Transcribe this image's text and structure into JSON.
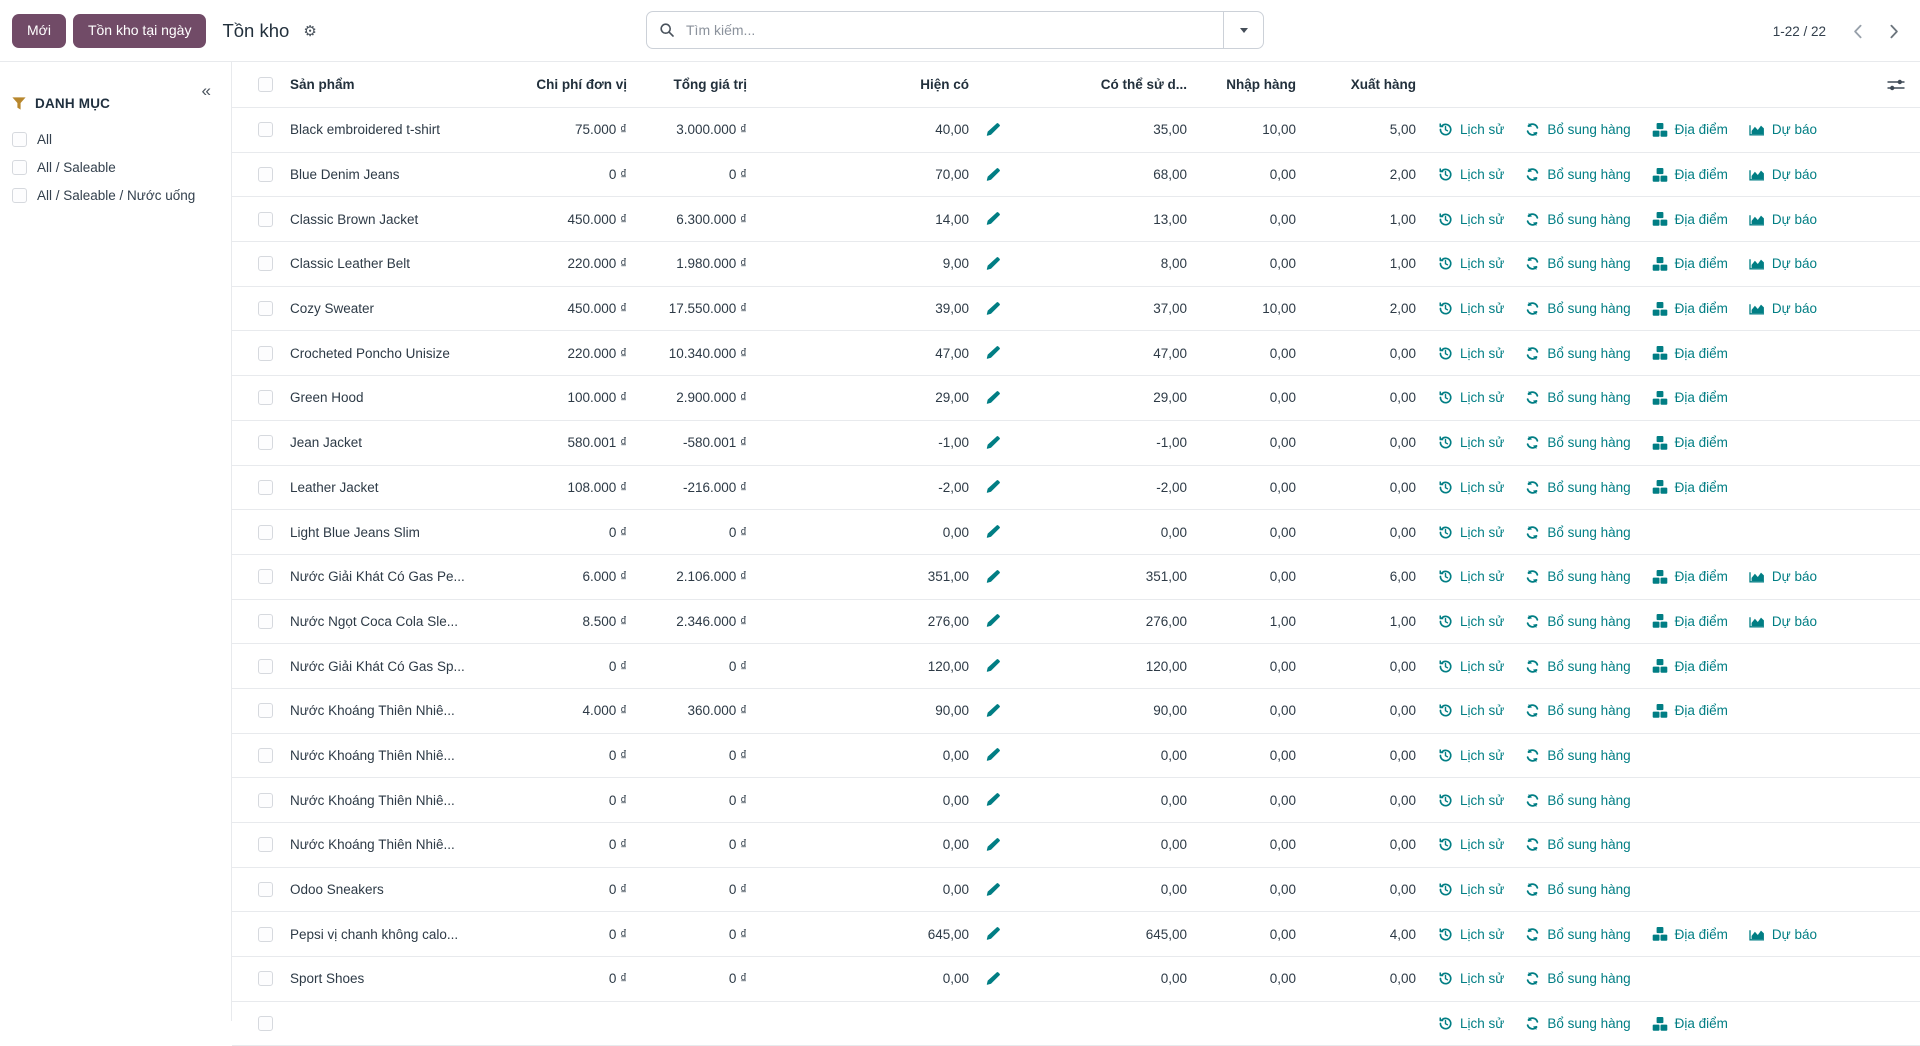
{
  "topbar": {
    "new_button": "Mới",
    "snapshot_button": "Tồn kho tại ngày",
    "title": "Tồn kho",
    "search_placeholder": "Tìm kiếm...",
    "pager_range": "1-22 / 22"
  },
  "sidebar": {
    "collapse_glyph": "«",
    "section_title": "DANH MỤC",
    "items": [
      {
        "label": "All"
      },
      {
        "label": "All / Saleable"
      },
      {
        "label": "All / Saleable / Nước uống"
      }
    ]
  },
  "table": {
    "headers": {
      "product": "Sản phẩm",
      "unit_cost": "Chi phí đơn vị",
      "total_value": "Tổng giá trị",
      "on_hand": "Hiện có",
      "available": "Có thể sử d...",
      "incoming": "Nhập hàng",
      "outgoing": "Xuất hàng"
    },
    "action_labels": {
      "history": "Lịch sử",
      "replenish": "Bổ sung hàng",
      "locations": "Địa điểm",
      "forecast": "Dự báo"
    },
    "rows": [
      {
        "name": "Black embroidered t-shirt",
        "unit_cost": "75.000 ₫",
        "total_value": "3.000.000 ₫",
        "on_hand": "40,00",
        "available": "35,00",
        "incoming": "10,00",
        "outgoing": "5,00",
        "actions": [
          "history",
          "replenish",
          "locations",
          "forecast"
        ]
      },
      {
        "name": "Blue Denim Jeans",
        "unit_cost": "0 ₫",
        "total_value": "0 ₫",
        "on_hand": "70,00",
        "available": "68,00",
        "incoming": "0,00",
        "outgoing": "2,00",
        "actions": [
          "history",
          "replenish",
          "locations",
          "forecast"
        ]
      },
      {
        "name": "Classic Brown Jacket",
        "unit_cost": "450.000 ₫",
        "total_value": "6.300.000 ₫",
        "on_hand": "14,00",
        "available": "13,00",
        "incoming": "0,00",
        "outgoing": "1,00",
        "actions": [
          "history",
          "replenish",
          "locations",
          "forecast"
        ]
      },
      {
        "name": "Classic Leather Belt",
        "unit_cost": "220.000 ₫",
        "total_value": "1.980.000 ₫",
        "on_hand": "9,00",
        "available": "8,00",
        "incoming": "0,00",
        "outgoing": "1,00",
        "actions": [
          "history",
          "replenish",
          "locations",
          "forecast"
        ]
      },
      {
        "name": "Cozy Sweater",
        "unit_cost": "450.000 ₫",
        "total_value": "17.550.000 ₫",
        "on_hand": "39,00",
        "available": "37,00",
        "incoming": "10,00",
        "outgoing": "2,00",
        "actions": [
          "history",
          "replenish",
          "locations",
          "forecast"
        ]
      },
      {
        "name": "Crocheted Poncho Unisize",
        "unit_cost": "220.000 ₫",
        "total_value": "10.340.000 ₫",
        "on_hand": "47,00",
        "available": "47,00",
        "incoming": "0,00",
        "outgoing": "0,00",
        "actions": [
          "history",
          "replenish",
          "locations"
        ]
      },
      {
        "name": "Green Hood",
        "unit_cost": "100.000 ₫",
        "total_value": "2.900.000 ₫",
        "on_hand": "29,00",
        "available": "29,00",
        "incoming": "0,00",
        "outgoing": "0,00",
        "actions": [
          "history",
          "replenish",
          "locations"
        ]
      },
      {
        "name": "Jean Jacket",
        "unit_cost": "580.001 ₫",
        "total_value": "-580.001 ₫",
        "on_hand": "-1,00",
        "available": "-1,00",
        "incoming": "0,00",
        "outgoing": "0,00",
        "actions": [
          "history",
          "replenish",
          "locations"
        ]
      },
      {
        "name": "Leather Jacket",
        "unit_cost": "108.000 ₫",
        "total_value": "-216.000 ₫",
        "on_hand": "-2,00",
        "available": "-2,00",
        "incoming": "0,00",
        "outgoing": "0,00",
        "actions": [
          "history",
          "replenish",
          "locations"
        ]
      },
      {
        "name": "Light Blue Jeans Slim",
        "unit_cost": "0 ₫",
        "total_value": "0 ₫",
        "on_hand": "0,00",
        "available": "0,00",
        "incoming": "0,00",
        "outgoing": "0,00",
        "actions": [
          "history",
          "replenish"
        ]
      },
      {
        "name": "Nước Giải Khát Có Gas Pe...",
        "unit_cost": "6.000 ₫",
        "total_value": "2.106.000 ₫",
        "on_hand": "351,00",
        "available": "351,00",
        "incoming": "0,00",
        "outgoing": "6,00",
        "actions": [
          "history",
          "replenish",
          "locations",
          "forecast"
        ]
      },
      {
        "name": "Nước Ngọt Coca Cola Sle...",
        "unit_cost": "8.500 ₫",
        "total_value": "2.346.000 ₫",
        "on_hand": "276,00",
        "available": "276,00",
        "incoming": "1,00",
        "outgoing": "1,00",
        "actions": [
          "history",
          "replenish",
          "locations",
          "forecast"
        ]
      },
      {
        "name": "Nước Giải Khát Có Gas Sp...",
        "unit_cost": "0 ₫",
        "total_value": "0 ₫",
        "on_hand": "120,00",
        "available": "120,00",
        "incoming": "0,00",
        "outgoing": "0,00",
        "actions": [
          "history",
          "replenish",
          "locations"
        ]
      },
      {
        "name": "Nước Khoáng Thiên Nhiê...",
        "unit_cost": "4.000 ₫",
        "total_value": "360.000 ₫",
        "on_hand": "90,00",
        "available": "90,00",
        "incoming": "0,00",
        "outgoing": "0,00",
        "actions": [
          "history",
          "replenish",
          "locations"
        ]
      },
      {
        "name": "Nước Khoáng Thiên Nhiê...",
        "unit_cost": "0 ₫",
        "total_value": "0 ₫",
        "on_hand": "0,00",
        "available": "0,00",
        "incoming": "0,00",
        "outgoing": "0,00",
        "actions": [
          "history",
          "replenish"
        ]
      },
      {
        "name": "Nước Khoáng Thiên Nhiê...",
        "unit_cost": "0 ₫",
        "total_value": "0 ₫",
        "on_hand": "0,00",
        "available": "0,00",
        "incoming": "0,00",
        "outgoing": "0,00",
        "actions": [
          "history",
          "replenish"
        ]
      },
      {
        "name": "Nước Khoáng Thiên Nhiê...",
        "unit_cost": "0 ₫",
        "total_value": "0 ₫",
        "on_hand": "0,00",
        "available": "0,00",
        "incoming": "0,00",
        "outgoing": "0,00",
        "actions": [
          "history",
          "replenish"
        ]
      },
      {
        "name": "Odoo Sneakers",
        "unit_cost": "0 ₫",
        "total_value": "0 ₫",
        "on_hand": "0,00",
        "available": "0,00",
        "incoming": "0,00",
        "outgoing": "0,00",
        "actions": [
          "history",
          "replenish"
        ]
      },
      {
        "name": "Pepsi vị chanh không calo...",
        "unit_cost": "0 ₫",
        "total_value": "0 ₫",
        "on_hand": "645,00",
        "available": "645,00",
        "incoming": "0,00",
        "outgoing": "4,00",
        "actions": [
          "history",
          "replenish",
          "locations",
          "forecast"
        ]
      },
      {
        "name": "Sport Shoes",
        "unit_cost": "0 ₫",
        "total_value": "0 ₫",
        "on_hand": "0,00",
        "available": "0,00",
        "incoming": "0,00",
        "outgoing": "0,00",
        "actions": [
          "history",
          "replenish"
        ]
      },
      {
        "name": "",
        "unit_cost": "",
        "total_value": "",
        "on_hand": "",
        "available": "",
        "incoming": "",
        "outgoing": "",
        "actions": [
          "history",
          "replenish",
          "locations"
        ],
        "partial": true
      }
    ]
  },
  "colors": {
    "accent_teal": "#017e84",
    "brand_purple": "#714B67",
    "funnel_gold": "#b8872d"
  }
}
